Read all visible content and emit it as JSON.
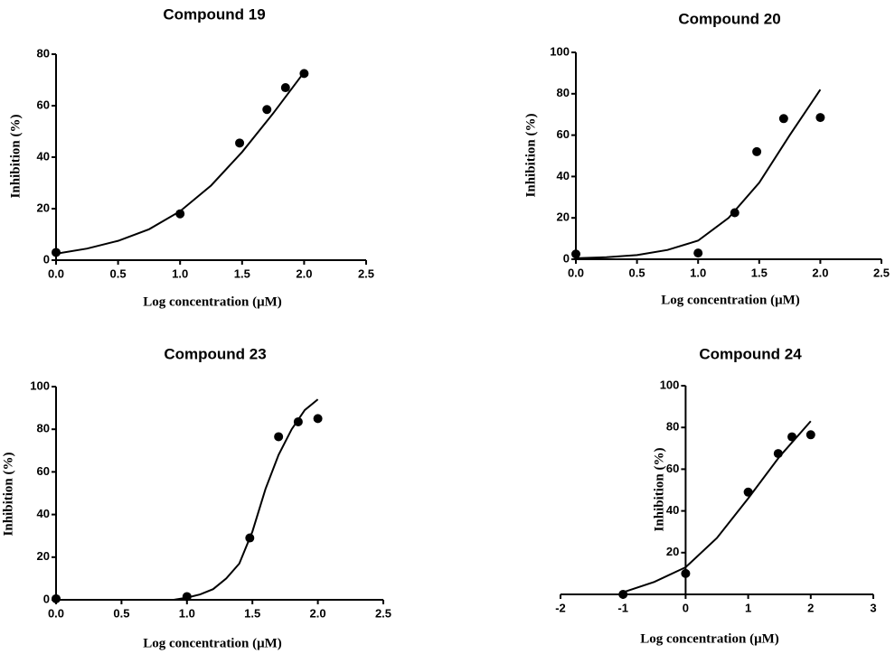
{
  "chart_data": [
    {
      "type": "scatter",
      "title": "Compound 19",
      "x_label": "Log concentration (μM)",
      "y_label": "Inhibition (%)",
      "x": [
        0,
        1,
        1.48,
        1.7,
        1.85,
        2
      ],
      "values": [
        3,
        18,
        45.5,
        58.5,
        67,
        72.5
      ],
      "color": "#000000",
      "fit": {
        "x": [
          0,
          0.25,
          0.5,
          0.75,
          1,
          1.25,
          1.5,
          1.75,
          2
        ],
        "y": [
          2.5,
          4.5,
          7.5,
          12,
          19,
          29,
          42,
          57,
          73
        ]
      },
      "xlim": [
        0,
        2.5
      ],
      "xticks": [
        {
          "value": 0,
          "label": "0.0"
        },
        0.5,
        {
          "value": 1,
          "label": "1.0"
        },
        1.5,
        {
          "value": 2,
          "label": "2.0"
        },
        2.5
      ],
      "ylim": [
        0,
        80
      ],
      "yticks": [
        0,
        20,
        40,
        60,
        80
      ]
    },
    {
      "type": "scatter",
      "title": "Compound 20",
      "x_label": "Log concentration (μM)",
      "y_label": "Inhibition (%)",
      "x": [
        0,
        1,
        1.3,
        1.48,
        1.7,
        2
      ],
      "values": [
        2.5,
        3,
        22.5,
        52,
        68,
        68.5
      ],
      "color": "#000000",
      "fit": {
        "x": [
          0,
          0.25,
          0.5,
          0.75,
          1,
          1.25,
          1.5,
          1.75,
          2
        ],
        "y": [
          0.5,
          1,
          2,
          4.5,
          9,
          20,
          37,
          60,
          82
        ]
      },
      "xlim": [
        0,
        2.5
      ],
      "xticks": [
        {
          "value": 0,
          "label": "0.0"
        },
        0.5,
        {
          "value": 1,
          "label": "1.0"
        },
        1.5,
        {
          "value": 2,
          "label": "2.0"
        },
        2.5
      ],
      "ylim": [
        0,
        100
      ],
      "yticks": [
        0,
        20,
        40,
        60,
        80,
        100
      ]
    },
    {
      "type": "scatter",
      "title": "Compound 23",
      "x_label": "Log concentration (μM)",
      "y_label": "Inhibition (%)",
      "x": [
        0,
        1,
        1.48,
        1.7,
        1.85,
        2
      ],
      "values": [
        0.5,
        1.5,
        29,
        76.5,
        83.5,
        85
      ],
      "color": "#000000",
      "fit": {
        "x": [
          0,
          0.5,
          0.9,
          1,
          1.1,
          1.2,
          1.3,
          1.4,
          1.5,
          1.6,
          1.7,
          1.8,
          1.9,
          2
        ],
        "y": [
          0,
          0,
          0,
          1,
          2.5,
          5,
          10,
          17,
          32,
          52,
          68,
          80,
          89,
          94
        ]
      },
      "xlim": [
        0,
        2.5
      ],
      "xticks": [
        {
          "value": 0,
          "label": "0.0"
        },
        0.5,
        {
          "value": 1,
          "label": "1.0"
        },
        1.5,
        {
          "value": 2,
          "label": "2.0"
        },
        2.5
      ],
      "ylim": [
        0,
        100
      ],
      "yticks": [
        0,
        20,
        40,
        60,
        80,
        100
      ]
    },
    {
      "type": "scatter",
      "title": "Compound 24",
      "x_label": "Log concentration (μM)",
      "y_label": "Inhibition (%)",
      "x": [
        -1,
        0,
        1,
        1.48,
        1.7,
        2
      ],
      "values": [
        0,
        10,
        49,
        67.5,
        75.5,
        76.5
      ],
      "color": "#000000",
      "fit": {
        "x": [
          -1,
          -0.5,
          0,
          0.5,
          1,
          1.5,
          2
        ],
        "y": [
          1,
          6,
          13,
          27,
          46,
          66,
          83
        ]
      },
      "xlim": [
        -2,
        3
      ],
      "xticks": [
        -2,
        -1,
        0,
        1,
        2,
        3
      ],
      "ylim": [
        0,
        100
      ],
      "yticks": [
        20,
        40,
        60,
        80,
        100
      ]
    }
  ]
}
